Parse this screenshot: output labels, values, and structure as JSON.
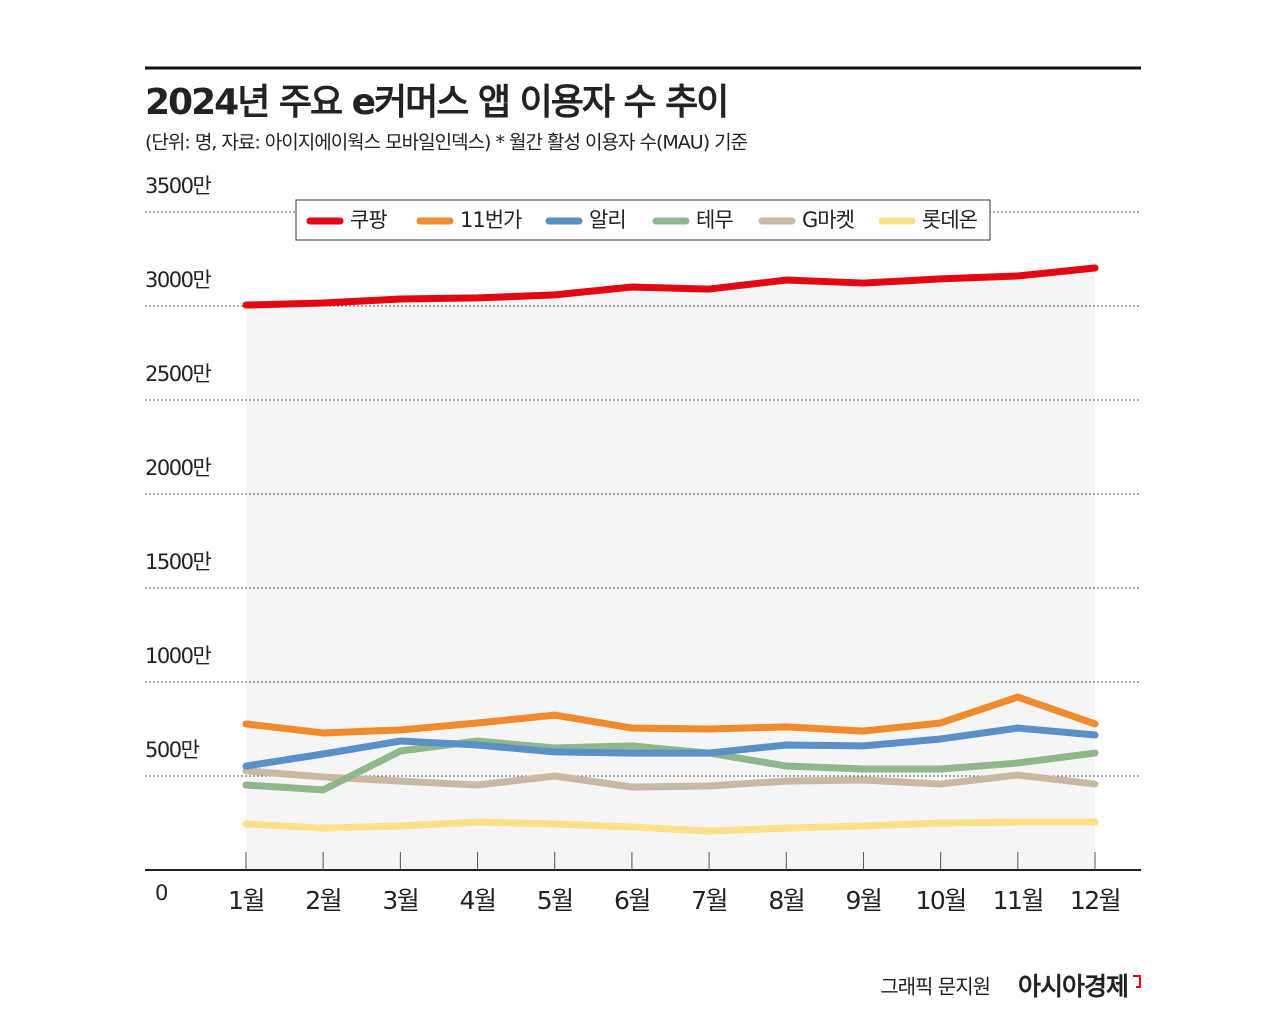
{
  "chart_data": {
    "type": "line",
    "title": "2024년 주요 e커머스 앱 이용자 수 추이",
    "subtitle": "(단위: 명, 자료: 아이지에이웍스 모바일인덱스)  * 월간 활성 이용자 수(MAU) 기준",
    "categories": [
      "1월",
      "2월",
      "3월",
      "4월",
      "5월",
      "6월",
      "7월",
      "8월",
      "9월",
      "10월",
      "11월",
      "12월"
    ],
    "series": [
      {
        "name": "쿠팡",
        "color": "#e30613",
        "values": [
          3005,
          3016,
          3037,
          3043,
          3059,
          3101,
          3090,
          3138,
          3122,
          3144,
          3160,
          3202
        ]
      },
      {
        "name": "11번가",
        "color": "#f08a2c",
        "values": [
          777,
          729,
          745,
          782,
          824,
          755,
          750,
          761,
          739,
          782,
          920,
          777
        ]
      },
      {
        "name": "알리",
        "color": "#5b8fc7",
        "values": [
          553,
          617,
          686,
          665,
          628,
          622,
          622,
          665,
          660,
          697,
          755,
          718
        ]
      },
      {
        "name": "테무",
        "color": "#8fb78b",
        "values": [
          452,
          426,
          633,
          686,
          649,
          660,
          622,
          553,
          537,
          537,
          569,
          622
        ]
      },
      {
        "name": "G마켓",
        "color": "#c9b9a3",
        "values": [
          527,
          495,
          473,
          452,
          500,
          441,
          447,
          473,
          479,
          457,
          505,
          457
        ]
      },
      {
        "name": "롯데온",
        "color": "#fbe08a",
        "values": [
          245,
          223,
          234,
          255,
          245,
          229,
          207,
          223,
          234,
          250,
          255,
          255
        ]
      }
    ],
    "ylim": [
      0,
      3500
    ],
    "yticks": [
      0,
      {
        "value": 500,
        "label": "500만"
      },
      {
        "value": 1000,
        "label": "1000만"
      },
      {
        "value": 1500,
        "label": "1500만"
      },
      {
        "value": 2000,
        "label": "2000만"
      },
      {
        "value": 2500,
        "label": "2500만"
      },
      {
        "value": 3000,
        "label": "3000만"
      },
      {
        "value": 3500,
        "label": "3500만"
      }
    ],
    "grid": true,
    "credit": "그래픽 문지원",
    "publisher": "아시아경제"
  }
}
